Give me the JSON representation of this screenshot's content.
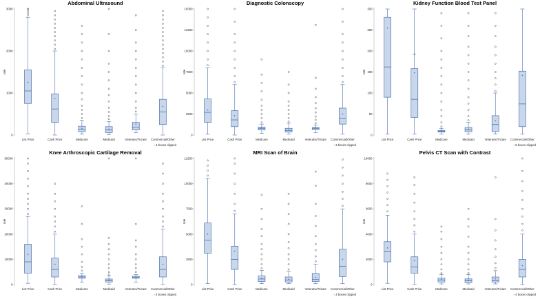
{
  "colors": {
    "box_fill": "#c9d7ea",
    "box_stroke": "#4a6fb0",
    "outlier": "#444444"
  },
  "chart_data": [
    {
      "type": "boxplot",
      "title": "Abdominal Ultrasound",
      "ylabel": "rate",
      "ylim": [
        0,
        3000
      ],
      "yticks": [
        0,
        1000,
        2000,
        3000
      ],
      "ytick_labels": [
        "0",
        "1000",
        "2000",
        "3000"
      ],
      "categories": [
        "List Price",
        "Cash Price",
        "Medicare",
        "Medicaid",
        "Veterans/Tricare",
        "Commercial/Other"
      ],
      "boxes": [
        {
          "min": 30,
          "q1": 750,
          "median": 1050,
          "q3": 1550,
          "max": 2800,
          "mean": 1250,
          "outliers": [
            2850,
            2900,
            2950,
            3000,
            3000
          ]
        },
        {
          "min": 0,
          "q1": 300,
          "median": 620,
          "q3": 980,
          "max": 2000,
          "mean": 870,
          "outliers": [
            2050,
            2150,
            2250,
            2350,
            2450,
            2550,
            2650,
            2750,
            2850,
            2950
          ]
        },
        {
          "min": 20,
          "q1": 80,
          "median": 140,
          "q3": 210,
          "max": 350,
          "mean": 160,
          "outliers": [
            400,
            500,
            600,
            700,
            850,
            1000,
            1200,
            1400,
            1600,
            1800,
            2000,
            2200,
            2400,
            2600
          ]
        },
        {
          "min": 10,
          "q1": 60,
          "median": 120,
          "q3": 200,
          "max": 320,
          "mean": 140,
          "outliers": [
            380,
            450,
            550,
            650,
            800,
            950,
            1100,
            1300,
            1500,
            1700,
            2000,
            2400,
            3000
          ]
        },
        {
          "min": 60,
          "q1": 120,
          "median": 190,
          "q3": 300,
          "max": 500,
          "mean": 260,
          "outliers": [
            560,
            650,
            800,
            1000,
            1200,
            1400,
            1600,
            1800,
            2000,
            2200,
            2500,
            2850
          ]
        },
        {
          "min": 0,
          "q1": 250,
          "median": 550,
          "q3": 850,
          "max": 1600,
          "mean": 680,
          "outliers": [
            1650,
            1750,
            1850,
            1950,
            2050,
            2150,
            2250,
            2350,
            2450,
            2550,
            2650,
            2750,
            2850,
            2950
          ]
        }
      ],
      "note": "4 boxes clipped"
    },
    {
      "type": "boxplot",
      "title": "Diagnostic Colonscopy",
      "ylabel": "rate",
      "ylim": [
        0,
        15000
      ],
      "yticks": [
        0,
        2500,
        5000,
        7500,
        10000,
        12500,
        15000
      ],
      "ytick_labels": [
        "0",
        "2500",
        "5000",
        "7500",
        "10000",
        "12500",
        "15000"
      ],
      "categories": [
        "List Price",
        "Cash Price",
        "Medicare",
        "Medicaid",
        "Veterans/Tricare",
        "Commercial/Other"
      ],
      "boxes": [
        {
          "min": 100,
          "q1": 1500,
          "median": 2700,
          "q3": 4300,
          "max": 8000,
          "mean": 3000,
          "outliers": [
            8300,
            9000,
            10000,
            11000,
            12000,
            13000,
            14000,
            15000
          ]
        },
        {
          "min": 0,
          "q1": 1000,
          "median": 1800,
          "q3": 2900,
          "max": 6000,
          "mean": 2300,
          "outliers": [
            6300,
            7000,
            8000,
            9000,
            10000,
            11000,
            12000,
            13500,
            15000
          ]
        },
        {
          "min": 200,
          "q1": 600,
          "median": 800,
          "q3": 950,
          "max": 1300,
          "mean": 850,
          "outliers": [
            1500,
            2000,
            2500,
            3000,
            3500,
            4200,
            5200,
            6200,
            7200,
            9000
          ]
        },
        {
          "min": 100,
          "q1": 350,
          "median": 550,
          "q3": 800,
          "max": 1400,
          "mean": 600,
          "outliers": [
            1600,
            2000,
            2500,
            3000,
            3500,
            4000,
            5000,
            6000,
            7500
          ]
        },
        {
          "min": 300,
          "q1": 650,
          "median": 800,
          "q3": 900,
          "max": 1200,
          "mean": 820,
          "outliers": [
            1400,
            1800,
            2200,
            2700,
            3200,
            3800,
            4500,
            5500,
            6800,
            13100
          ]
        },
        {
          "min": 100,
          "q1": 1300,
          "median": 2000,
          "q3": 3200,
          "max": 6000,
          "mean": 2500,
          "outliers": [
            6300,
            7000,
            8000,
            9000,
            10000,
            11000,
            12000,
            13500,
            15000
          ]
        }
      ],
      "note": "3 boxes clipped"
    },
    {
      "type": "boxplot",
      "title": "Kidney Function Blood Test Panel",
      "ylabel": "rate",
      "ylim": [
        0,
        300
      ],
      "yticks": [
        0,
        50,
        100,
        150,
        200,
        250,
        300
      ],
      "ytick_labels": [
        "0",
        "50",
        "100",
        "150",
        "200",
        "250",
        "300"
      ],
      "categories": [
        "List Price",
        "Cash Price",
        "Medicare",
        "Medicaid",
        "Veterans/Tricare",
        "Commercial/Other"
      ],
      "boxes": [
        {
          "min": 2,
          "q1": 90,
          "median": 162,
          "q3": 280,
          "max": 300,
          "mean": 255,
          "outliers": []
        },
        {
          "min": 2,
          "q1": 42,
          "median": 85,
          "q3": 158,
          "max": 300,
          "mean": 148,
          "outliers": [
            192
          ]
        },
        {
          "min": 2,
          "q1": 7,
          "median": 9,
          "q3": 11,
          "max": 16,
          "mean": 10,
          "outliers": [
            20,
            30,
            45,
            60,
            80,
            100,
            120,
            140,
            160,
            180,
            200,
            230,
            260,
            290
          ]
        },
        {
          "min": 2,
          "q1": 8,
          "median": 12,
          "q3": 18,
          "max": 30,
          "mean": 14,
          "outliers": [
            35,
            45,
            60,
            75,
            90,
            110,
            130,
            150,
            170,
            190,
            210,
            235,
            260,
            290
          ]
        },
        {
          "min": 2,
          "q1": 8,
          "median": 25,
          "q3": 46,
          "max": 100,
          "mean": 34,
          "outliers": [
            105,
            120,
            135,
            150,
            170,
            190,
            210,
            235,
            260,
            290
          ]
        },
        {
          "min": 2,
          "q1": 20,
          "median": 74,
          "q3": 152,
          "max": 300,
          "mean": 142,
          "outliers": []
        }
      ],
      "note": "6 boxes clipped"
    },
    {
      "type": "boxplot",
      "title": "Knee Arthroscopic Cartilage Removal",
      "ylabel": "rate",
      "ylim": [
        0,
        50000
      ],
      "yticks": [
        0,
        10000,
        20000,
        30000,
        40000,
        50000
      ],
      "ytick_labels": [
        "0",
        "10000",
        "20000",
        "30000",
        "40000",
        "50000"
      ],
      "categories": [
        "List Price",
        "Cash Price",
        "Medicare",
        "Medicaid",
        "Veterans/Tricare",
        "Commercial/Other"
      ],
      "boxes": [
        {
          "min": 500,
          "q1": 4500,
          "median": 9000,
          "q3": 16000,
          "max": 27000,
          "mean": 12000,
          "outliers": [
            28000,
            30000,
            32000,
            34000,
            36000,
            39000,
            42000,
            45000,
            48000,
            50000
          ]
        },
        {
          "min": 0,
          "q1": 3000,
          "median": 6000,
          "q3": 10500,
          "max": 20000,
          "mean": 8000,
          "outliers": [
            21000,
            23000,
            25000,
            27000,
            30000,
            33000,
            36000,
            40000
          ]
        },
        {
          "min": 1000,
          "q1": 2500,
          "median": 3000,
          "q3": 3500,
          "max": 4500,
          "mean": 3100,
          "outliers": [
            5500,
            7000,
            9000,
            12000,
            15000,
            18000,
            24000,
            31000
          ]
        },
        {
          "min": 200,
          "q1": 1000,
          "median": 1500,
          "q3": 2200,
          "max": 3500,
          "mean": 1800,
          "outliers": [
            4000,
            5000,
            6500,
            8000,
            10000,
            12000,
            14000,
            16000,
            18500,
            50000
          ]
        },
        {
          "min": 1000,
          "q1": 2500,
          "median": 2900,
          "q3": 3300,
          "max": 4000,
          "mean": 3000,
          "outliers": [
            5000,
            6500,
            8000,
            10000,
            12000,
            15000,
            17500,
            24000,
            50000
          ]
        },
        {
          "min": 0,
          "q1": 3000,
          "median": 6000,
          "q3": 11000,
          "max": 22000,
          "mean": 8000,
          "outliers": [
            23000,
            25000,
            27000,
            30000,
            33000,
            36000,
            40000,
            44000,
            48000
          ]
        }
      ],
      "note": "4 boxes clipped"
    },
    {
      "type": "boxplot",
      "title": "MRI Scan of Brain",
      "ylabel": "rate",
      "ylim": [
        0,
        12500
      ],
      "yticks": [
        0,
        2500,
        5000,
        7500,
        10000,
        12500
      ],
      "ytick_labels": [
        "0",
        "2500",
        "5000",
        "7500",
        "10000",
        "12500"
      ],
      "categories": [
        "List Price",
        "Cash Price",
        "Medicare",
        "Medicaid",
        "Veterans/Tricare",
        "Commercial/Other"
      ],
      "boxes": [
        {
          "min": 100,
          "q1": 3100,
          "median": 4400,
          "q3": 6100,
          "max": 10500,
          "mean": 5000,
          "outliers": [
            10800,
            11300,
            11800,
            12300
          ]
        },
        {
          "min": 0,
          "q1": 1500,
          "median": 2500,
          "q3": 3800,
          "max": 7000,
          "mean": 3300,
          "outliers": [
            7300,
            8000,
            9000,
            10000,
            11000,
            12000,
            12500
          ]
        },
        {
          "min": 100,
          "q1": 300,
          "median": 550,
          "q3": 850,
          "max": 1400,
          "mean": 600,
          "outliers": [
            1600,
            2000,
            2500,
            3000,
            3500,
            4000,
            4800,
            5500,
            6500,
            7500,
            8900
          ]
        },
        {
          "min": 100,
          "q1": 250,
          "median": 450,
          "q3": 750,
          "max": 1300,
          "mean": 520,
          "outliers": [
            1500,
            2000,
            2500,
            3000,
            3600,
            4200,
            5000,
            6000,
            7000,
            8000,
            9000
          ]
        },
        {
          "min": 100,
          "q1": 300,
          "median": 500,
          "q3": 1100,
          "max": 2000,
          "mean": 700,
          "outliers": [
            2300,
            2800,
            3400,
            4000,
            4800,
            5800,
            6800,
            8000,
            9800,
            11200
          ]
        },
        {
          "min": 100,
          "q1": 800,
          "median": 1800,
          "q3": 3500,
          "max": 7500,
          "mean": 2500,
          "outliers": [
            7800,
            8500,
            9200,
            10000,
            10800,
            11600,
            12400
          ]
        }
      ],
      "note": "3 boxes clipped"
    },
    {
      "type": "boxplot",
      "title": "Pelvis CT Scan with Contrast",
      "ylabel": "rate",
      "ylim": [
        0,
        10000
      ],
      "yticks": [
        0,
        2000,
        4000,
        6000,
        8000,
        10000
      ],
      "ytick_labels": [
        "0",
        "2000",
        "4000",
        "6000",
        "8000",
        "10000"
      ],
      "categories": [
        "List Price",
        "Cash Price",
        "Medicare",
        "Medicaid",
        "Veterans/Tricare",
        "Commercial/Other"
      ],
      "boxes": [
        {
          "min": 100,
          "q1": 1800,
          "median": 2600,
          "q3": 3400,
          "max": 5500,
          "mean": 2900,
          "outliers": [
            5800,
            6300,
            6800,
            7300,
            7800,
            8300,
            8800
          ]
        },
        {
          "min": 0,
          "q1": 900,
          "median": 1400,
          "q3": 2200,
          "max": 4000,
          "mean": 1900,
          "outliers": [
            4200,
            4700,
            5200,
            5800,
            6500,
            7200,
            7900,
            8500
          ]
        },
        {
          "min": 50,
          "q1": 200,
          "median": 350,
          "q3": 500,
          "max": 800,
          "mean": 400,
          "outliers": [
            900,
            1200,
            1600,
            2000,
            2500,
            3000,
            3600,
            4200,
            4600
          ]
        },
        {
          "min": 50,
          "q1": 150,
          "median": 300,
          "q3": 450,
          "max": 800,
          "mean": 350,
          "outliers": [
            900,
            1200,
            1600,
            2000,
            2500,
            3000,
            3800,
            4600,
            5200,
            6000
          ]
        },
        {
          "min": 50,
          "q1": 200,
          "median": 300,
          "q3": 600,
          "max": 1100,
          "mean": 450,
          "outliers": [
            1300,
            1700,
            2200,
            2800,
            3500,
            4300,
            5200,
            8500
          ]
        },
        {
          "min": 0,
          "q1": 600,
          "median": 1200,
          "q3": 2000,
          "max": 4000,
          "mean": 1500,
          "outliers": [
            4300,
            4800,
            5400,
            6000,
            6700,
            7400,
            8200,
            9000,
            10000
          ]
        }
      ],
      "note": "4 boxes clipped"
    }
  ]
}
